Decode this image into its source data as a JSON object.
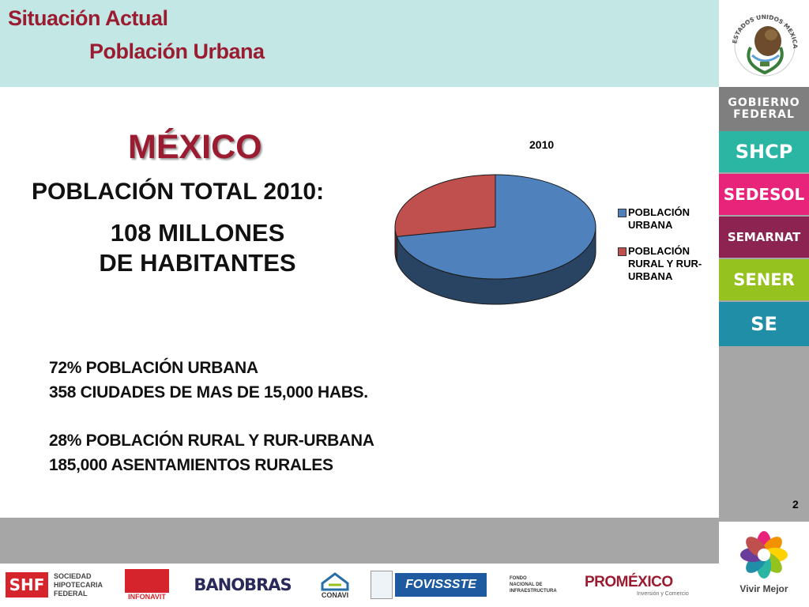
{
  "header": {
    "title": "Situación Actual",
    "subtitle": "Población Urbana"
  },
  "main": {
    "country": "MÉXICO",
    "population_label": "POBLACIÓN TOTAL 2010:",
    "population_value_line1": "108 MILLONES",
    "population_value_line2": "DE HABITANTES",
    "stats": [
      "72% POBLACIÓN URBANA",
      "358 CIUDADES DE MAS DE 15,000 HABS.",
      "28% POBLACIÓN RURAL Y RUR-URBANA",
      "185,000 ASENTAMIENTOS RURALES"
    ]
  },
  "chart_data": {
    "type": "pie",
    "title": "2010",
    "categories": [
      "POBLACIÓN URBANA",
      "POBLACIÓN RURAL Y RUR-URBANA"
    ],
    "values": [
      72,
      28
    ],
    "colors": [
      "#4f81bd",
      "#c0504d"
    ],
    "legend": "right",
    "legend_lines": [
      [
        "POBLACIÓN",
        "URBANA"
      ],
      [
        "POBLACIÓN",
        "RURAL Y RUR-",
        "URBANA"
      ]
    ]
  },
  "sidebar": {
    "seal_text": "ESTADOS UNIDOS MEXICANOS",
    "gobierno": [
      "GOBIERNO",
      "FEDERAL"
    ],
    "agencies": [
      "SHCP",
      "SEDESOL",
      "SEMARNAT",
      "SENER",
      "SE"
    ],
    "brand": "Vivir Mejor"
  },
  "page_number": "2",
  "footer_logos": {
    "shf": "SHF",
    "shf_name": [
      "SOCIEDAD",
      "HIPOTECARIA",
      "FEDERAL"
    ],
    "infonavit": "INFONAVIT",
    "banobras": "BANOBRAS",
    "conavi": "CONAVI",
    "fovissste": "FOVISSSTE",
    "fonadin": [
      "FONDO",
      "NACIONAL DE",
      "INFRAESTRUCTURA"
    ],
    "promexico": "PROMÉXICO",
    "promexico_tag": "Inversión y Comercio"
  },
  "colors": {
    "header_bg": "#c2e7e5",
    "title": "#9b1b30",
    "shcp": "#2bb5a3",
    "sedesol": "#e8247a",
    "semarnat": "#8c2350",
    "sener": "#95c21f",
    "se": "#1f8ea6"
  }
}
